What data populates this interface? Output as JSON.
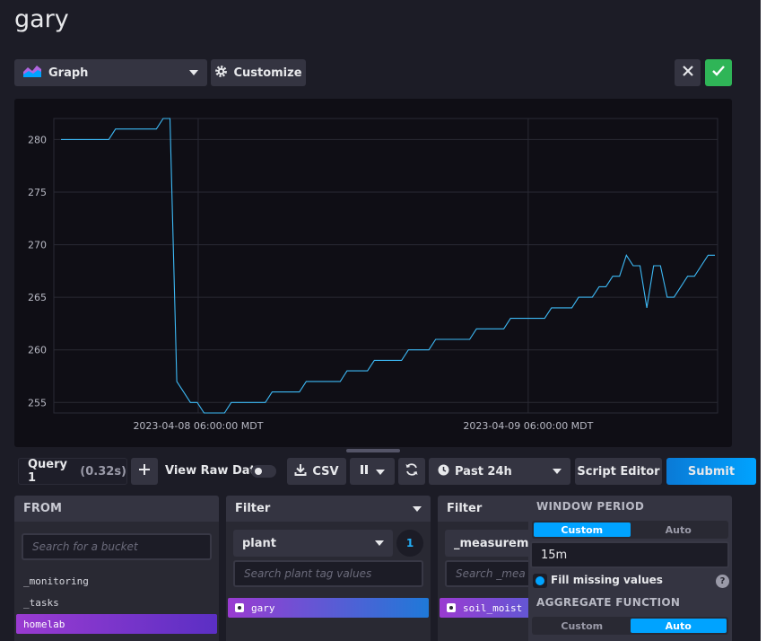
{
  "page": {
    "title": "gary"
  },
  "toolbar": {
    "viz_label": "Graph",
    "customize_label": "Customize"
  },
  "colors": {
    "accent": "#00a3ff",
    "confirm": "#2fb557",
    "series": "#3db9f5",
    "selected_gradient_start": "#9a3bd1"
  },
  "chart_data": {
    "type": "line",
    "xlabel": "",
    "ylabel": "",
    "ylim": [
      254,
      282
    ],
    "yticks": [
      255,
      260,
      265,
      270,
      275,
      280
    ],
    "xticks": [
      "2023-04-08 06:00:00 MDT",
      "2023-04-09 06:00:00 MDT"
    ],
    "grid": true,
    "series": [
      {
        "values": [
          280,
          280,
          280,
          280,
          280,
          280,
          280,
          280,
          281,
          281,
          281,
          281,
          281,
          281,
          281,
          282,
          282,
          257,
          256,
          255,
          255,
          254,
          254,
          254,
          254,
          255,
          255,
          255,
          255,
          255,
          255,
          256,
          256,
          256,
          256,
          256,
          257,
          257,
          257,
          257,
          257,
          257,
          258,
          258,
          258,
          258,
          259,
          259,
          259,
          259,
          259,
          260,
          260,
          260,
          260,
          261,
          261,
          261,
          261,
          261,
          261,
          262,
          262,
          262,
          262,
          262,
          263,
          263,
          263,
          263,
          263,
          263,
          264,
          264,
          264,
          264,
          265,
          265,
          265,
          266,
          266,
          267,
          267,
          269,
          268,
          268,
          264,
          268,
          268,
          265,
          265,
          266,
          267,
          267,
          268,
          269,
          269
        ]
      }
    ]
  },
  "query": {
    "tab_label": "Query 1",
    "tab_time": "(0.32s)",
    "raw_data_label": "View Raw Data",
    "csv_label": "CSV",
    "time_range_label": "Past 24h",
    "script_editor_label": "Script Editor",
    "submit_label": "Submit"
  },
  "from": {
    "header": "FROM",
    "search_placeholder": "Search for a bucket",
    "buckets": [
      "_monitoring",
      "_tasks",
      "homelab"
    ],
    "selected": "homelab"
  },
  "filter1": {
    "header": "Filter",
    "key": "plant",
    "count": "1",
    "search_placeholder": "Search plant tag values",
    "values": [
      "gary"
    ]
  },
  "filter2": {
    "header": "Filter",
    "key": "_measureme",
    "search_placeholder": "Search _mea",
    "values": [
      "soil_moist"
    ]
  },
  "window": {
    "period_title": "WINDOW PERIOD",
    "period_options": [
      "Custom",
      "Auto"
    ],
    "period_active": "Custom",
    "period_value": "15m",
    "fill_label": "Fill missing values",
    "aggregate_title": "AGGREGATE FUNCTION",
    "aggregate_options": [
      "Custom",
      "Auto"
    ],
    "aggregate_active": "Auto"
  }
}
